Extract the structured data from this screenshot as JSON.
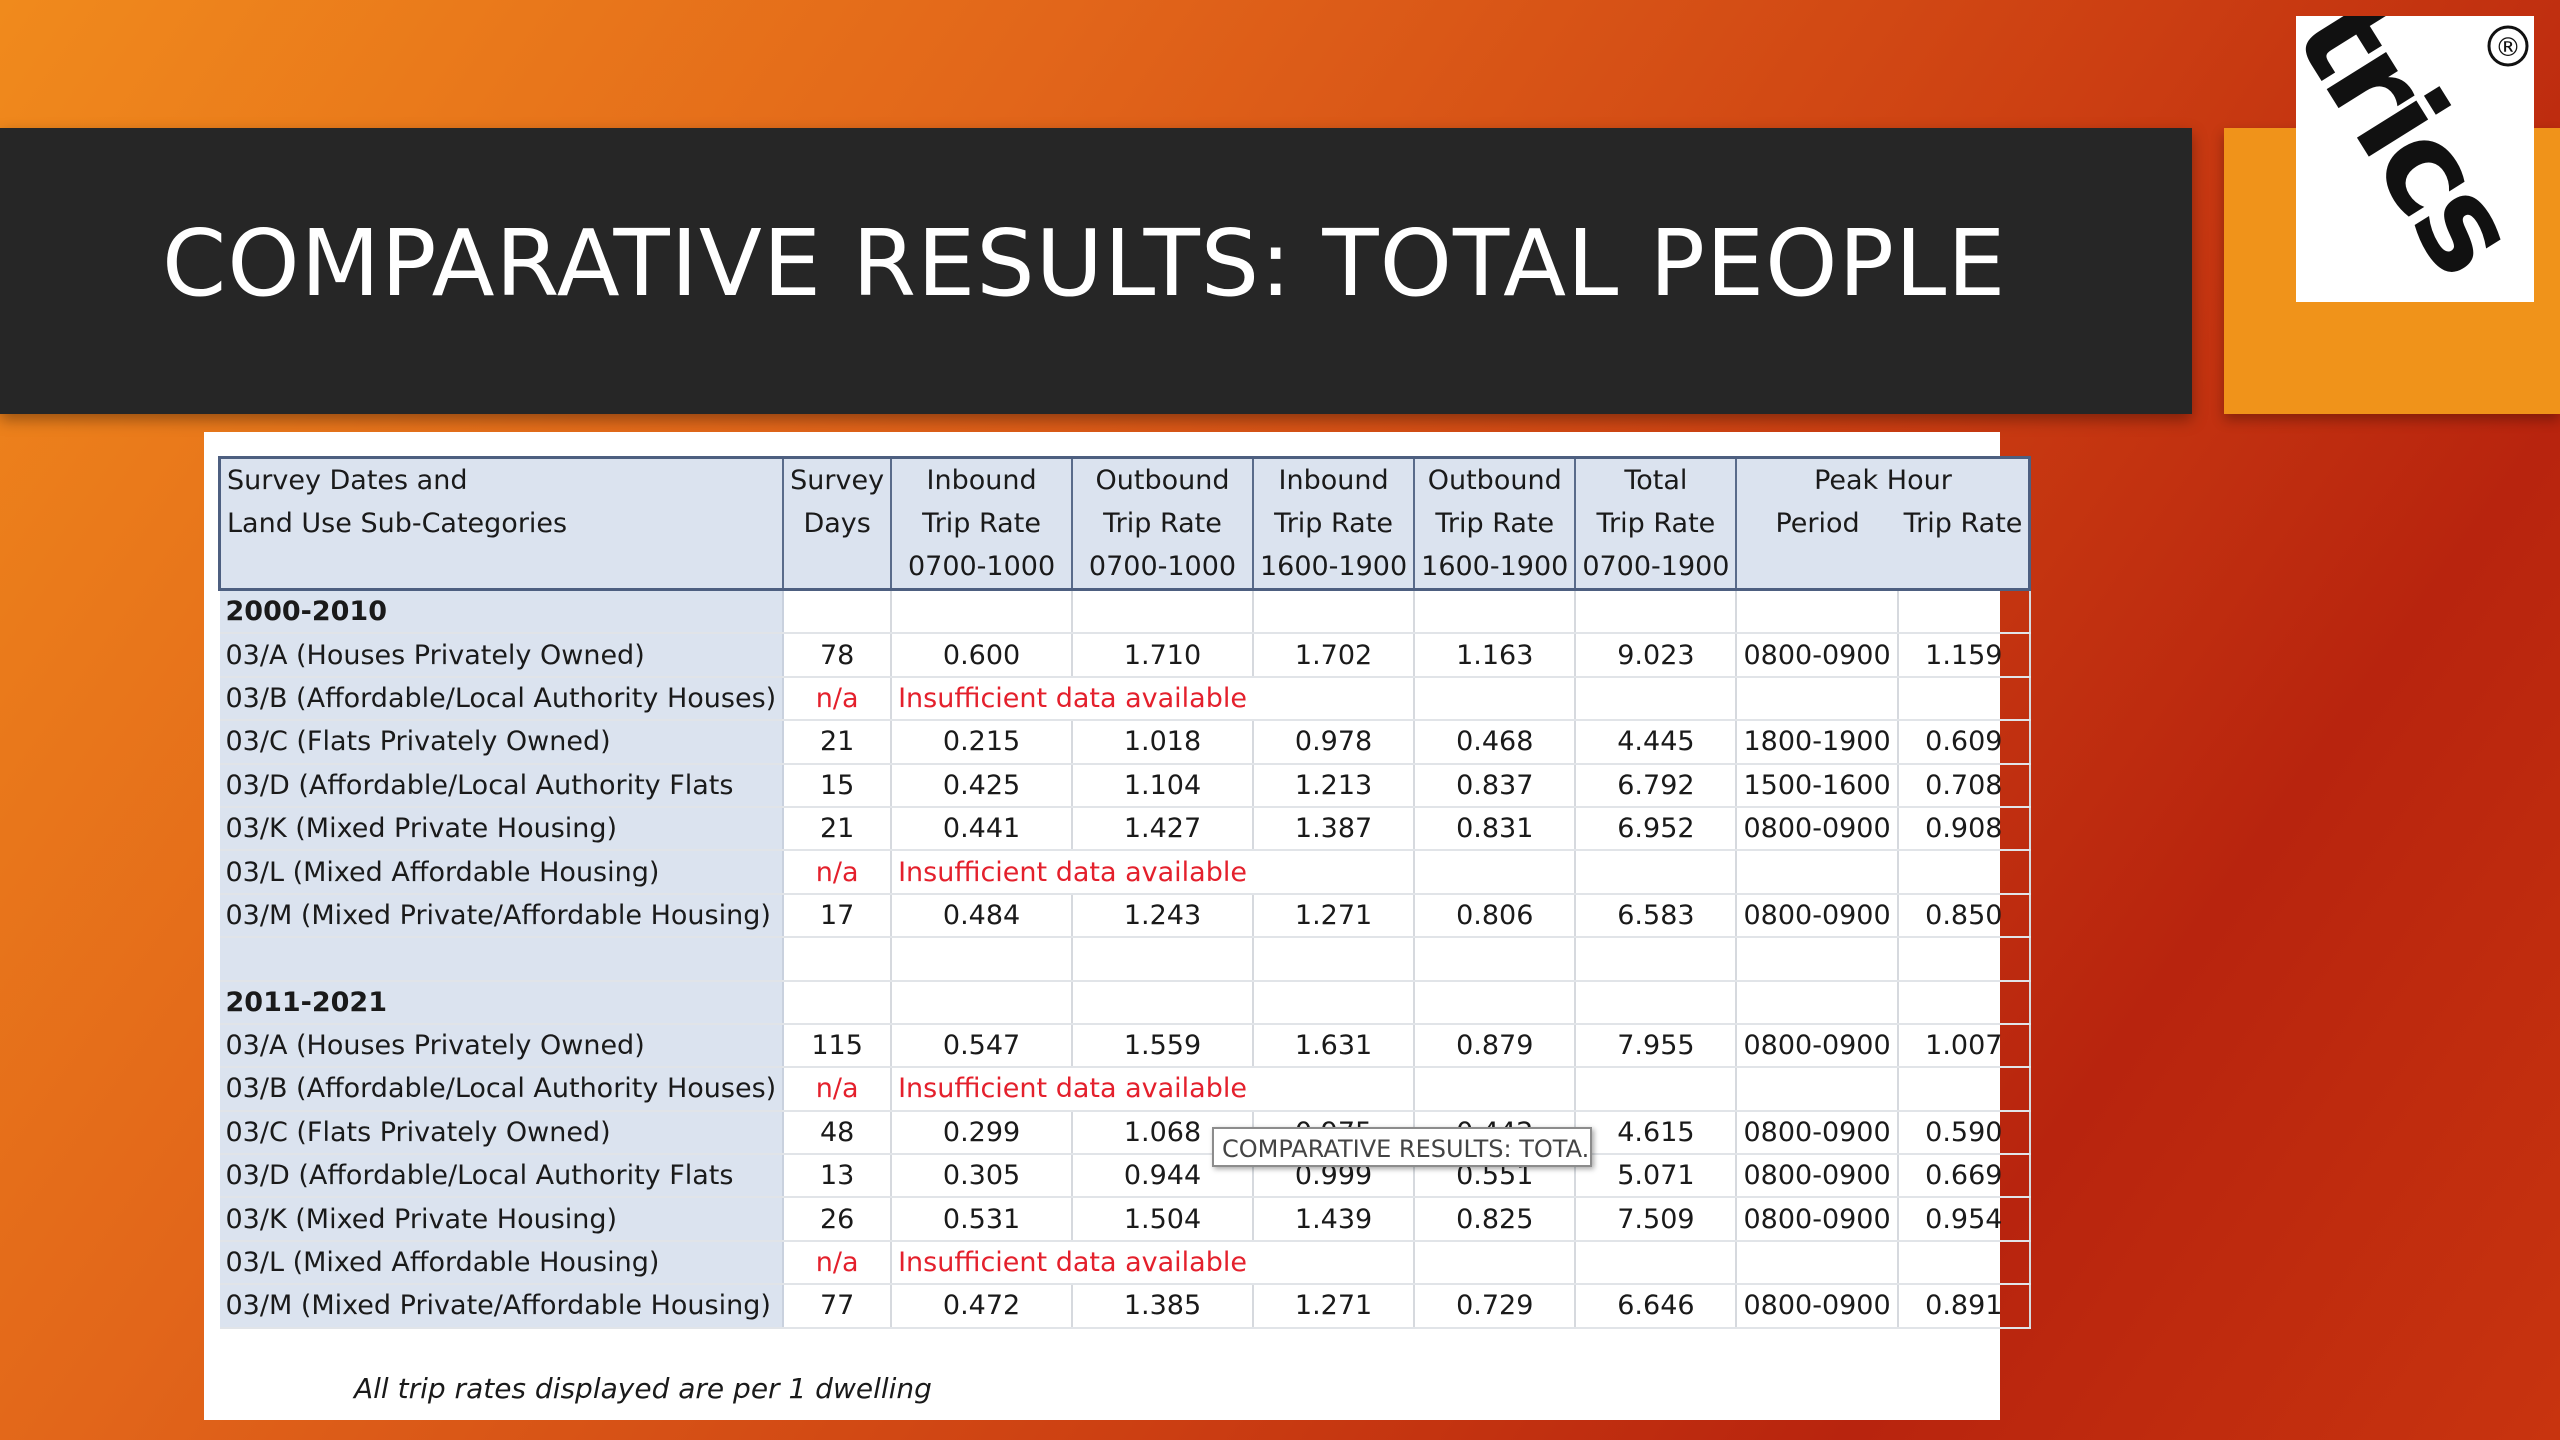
{
  "slide": {
    "title": "COMPARATIVE RESULTS: TOTAL PEOPLE",
    "footnote": "All trip rates displayed are per 1 dwelling",
    "tooltip": "COMPARATIVE RESULTS: TOTA...",
    "logo": {
      "text": "trics",
      "registered_mark": "®"
    }
  },
  "colors": {
    "banner": "#262626",
    "accent_orange": "#f0931a",
    "header_fill": "#dbe3ef",
    "na_red": "#e4202c"
  },
  "table": {
    "headers": {
      "col1": [
        "Survey Dates and",
        "Land Use Sub-Categories",
        ""
      ],
      "col2": [
        "Survey",
        "Days",
        ""
      ],
      "col3": [
        "Inbound",
        "Trip Rate",
        "0700-1000"
      ],
      "col4": [
        "Outbound",
        "Trip Rate",
        "0700-1000"
      ],
      "col5": [
        "Inbound",
        "Trip Rate",
        "1600-1900"
      ],
      "col6": [
        "Outbound",
        "Trip Rate",
        "1600-1900"
      ],
      "col7": [
        "Total",
        "Trip Rate",
        "0700-1900"
      ],
      "peak_hour": "Peak Hour",
      "peak_period": "Period",
      "peak_rate": "Trip Rate"
    },
    "rows": [
      {
        "type": "group",
        "label": "2000-2010"
      },
      {
        "type": "data",
        "label": "03/A (Houses Privately Owned)",
        "days": "78",
        "in_am": "0.600",
        "out_am": "1.710",
        "in_pm": "1.702",
        "out_pm": "1.163",
        "total": "9.023",
        "peak_period": "0800-0900",
        "peak_rate": "1.159"
      },
      {
        "type": "na",
        "label": "03/B (Affordable/Local Authority Houses)",
        "days": "n/a",
        "note": "Insufficient data available"
      },
      {
        "type": "data",
        "label": "03/C (Flats Privately Owned)",
        "days": "21",
        "in_am": "0.215",
        "out_am": "1.018",
        "in_pm": "0.978",
        "out_pm": "0.468",
        "total": "4.445",
        "peak_period": "1800-1900",
        "peak_rate": "0.609"
      },
      {
        "type": "data",
        "label": "03/D (Affordable/Local Authority Flats",
        "days": "15",
        "in_am": "0.425",
        "out_am": "1.104",
        "in_pm": "1.213",
        "out_pm": "0.837",
        "total": "6.792",
        "peak_period": "1500-1600",
        "peak_rate": "0.708"
      },
      {
        "type": "data",
        "label": "03/K (Mixed Private Housing)",
        "days": "21",
        "in_am": "0.441",
        "out_am": "1.427",
        "in_pm": "1.387",
        "out_pm": "0.831",
        "total": "6.952",
        "peak_period": "0800-0900",
        "peak_rate": "0.908"
      },
      {
        "type": "na",
        "label": "03/L (Mixed Affordable Housing)",
        "days": "n/a",
        "note": "Insufficient data available"
      },
      {
        "type": "data",
        "label": "03/M (Mixed Private/Affordable Housing)",
        "days": "17",
        "in_am": "0.484",
        "out_am": "1.243",
        "in_pm": "1.271",
        "out_pm": "0.806",
        "total": "6.583",
        "peak_period": "0800-0900",
        "peak_rate": "0.850"
      },
      {
        "type": "blank"
      },
      {
        "type": "group",
        "label": "2011-2021"
      },
      {
        "type": "data",
        "label": "03/A (Houses Privately Owned)",
        "days": "115",
        "in_am": "0.547",
        "out_am": "1.559",
        "in_pm": "1.631",
        "out_pm": "0.879",
        "total": "7.955",
        "peak_period": "0800-0900",
        "peak_rate": "1.007"
      },
      {
        "type": "na",
        "label": "03/B (Affordable/Local Authority Houses)",
        "days": "n/a",
        "note": "Insufficient data available"
      },
      {
        "type": "data",
        "label": "03/C (Flats Privately Owned)",
        "days": "48",
        "in_am": "0.299",
        "out_am": "1.068",
        "in_pm": "0.975",
        "out_pm": "0.442",
        "total": "4.615",
        "peak_period": "0800-0900",
        "peak_rate": "0.590"
      },
      {
        "type": "data",
        "label": "03/D (Affordable/Local Authority Flats",
        "days": "13",
        "in_am": "0.305",
        "out_am": "0.944",
        "in_pm": "0.999",
        "out_pm": "0.551",
        "total": "5.071",
        "peak_period": "0800-0900",
        "peak_rate": "0.669"
      },
      {
        "type": "data",
        "label": "03/K (Mixed Private Housing)",
        "days": "26",
        "in_am": "0.531",
        "out_am": "1.504",
        "in_pm": "1.439",
        "out_pm": "0.825",
        "total": "7.509",
        "peak_period": "0800-0900",
        "peak_rate": "0.954"
      },
      {
        "type": "na",
        "label": "03/L (Mixed Affordable Housing)",
        "days": "n/a",
        "note": "Insufficient data available"
      },
      {
        "type": "data",
        "label": "03/M (Mixed Private/Affordable Housing)",
        "days": "77",
        "in_am": "0.472",
        "out_am": "1.385",
        "in_pm": "1.271",
        "out_pm": "0.729",
        "total": "6.646",
        "peak_period": "0800-0900",
        "peak_rate": "0.891"
      }
    ]
  }
}
